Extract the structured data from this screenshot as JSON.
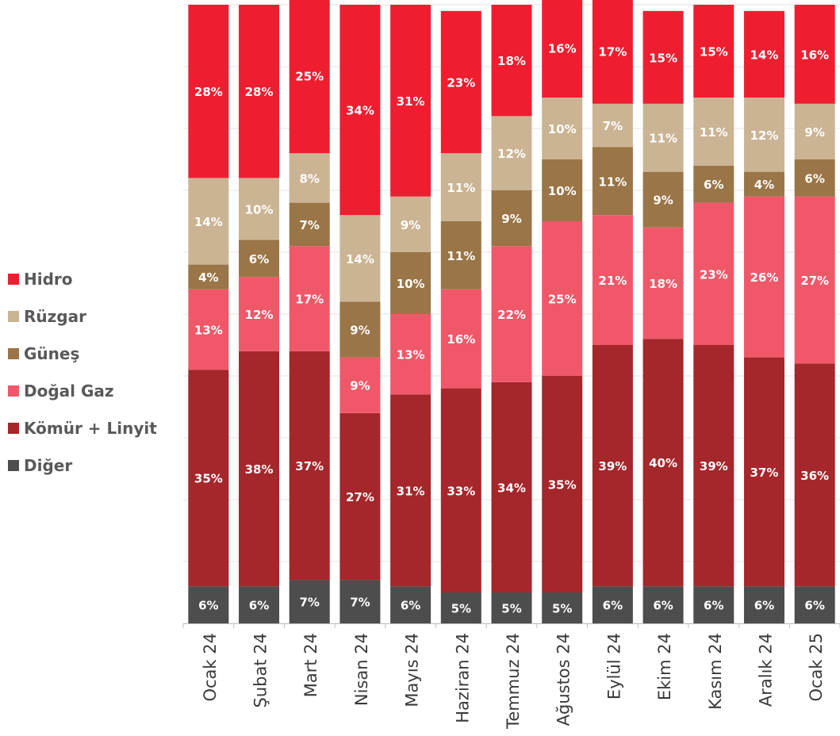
{
  "chart_data": {
    "type": "bar",
    "stacked": true,
    "percent": true,
    "legend_position": "left",
    "grid": true,
    "ylim": [
      0,
      100
    ],
    "categories": [
      "Ocak 24",
      "Şubat 24",
      "Mart 24",
      "Nisan 24",
      "Mayıs 24",
      "Haziran 24",
      "Temmuz 24",
      "Ağustos 24",
      "Eylül 24",
      "Ekim 24",
      "Kasım 24",
      "Aralık 24",
      "Ocak 25"
    ],
    "series": [
      {
        "name": "Diğer",
        "color": "#4d4d4d",
        "values": [
          6,
          6,
          7,
          7,
          6,
          5,
          5,
          5,
          6,
          6,
          6,
          6,
          6
        ]
      },
      {
        "name": "Kömür + Linyit",
        "color": "#a5262b",
        "values": [
          35,
          38,
          37,
          27,
          31,
          33,
          34,
          35,
          39,
          40,
          39,
          37,
          36
        ]
      },
      {
        "name": "Doğal Gaz",
        "color": "#f0586a",
        "values": [
          13,
          12,
          17,
          9,
          13,
          16,
          22,
          25,
          21,
          18,
          23,
          26,
          27
        ]
      },
      {
        "name": "Güneş",
        "color": "#9a7547",
        "values": [
          4,
          6,
          7,
          9,
          10,
          11,
          9,
          10,
          11,
          9,
          6,
          4,
          6
        ]
      },
      {
        "name": "Rüzgar",
        "color": "#cbb494",
        "values": [
          14,
          10,
          8,
          14,
          9,
          11,
          12,
          10,
          7,
          11,
          11,
          12,
          9
        ]
      },
      {
        "name": "Hidro",
        "color": "#ee1e30",
        "values": [
          28,
          28,
          25,
          34,
          31,
          23,
          18,
          16,
          17,
          15,
          15,
          14,
          16
        ]
      }
    ]
  },
  "legend": {
    "items": [
      {
        "label": "Hidro",
        "color": "#ee1e30"
      },
      {
        "label": "Rüzgar",
        "color": "#cbb494"
      },
      {
        "label": "Güneş",
        "color": "#9a7547"
      },
      {
        "label": "Doğal Gaz",
        "color": "#f0586a"
      },
      {
        "label": "Kömür + Linyit",
        "color": "#a5262b"
      },
      {
        "label": "Diğer",
        "color": "#4d4d4d"
      }
    ]
  }
}
